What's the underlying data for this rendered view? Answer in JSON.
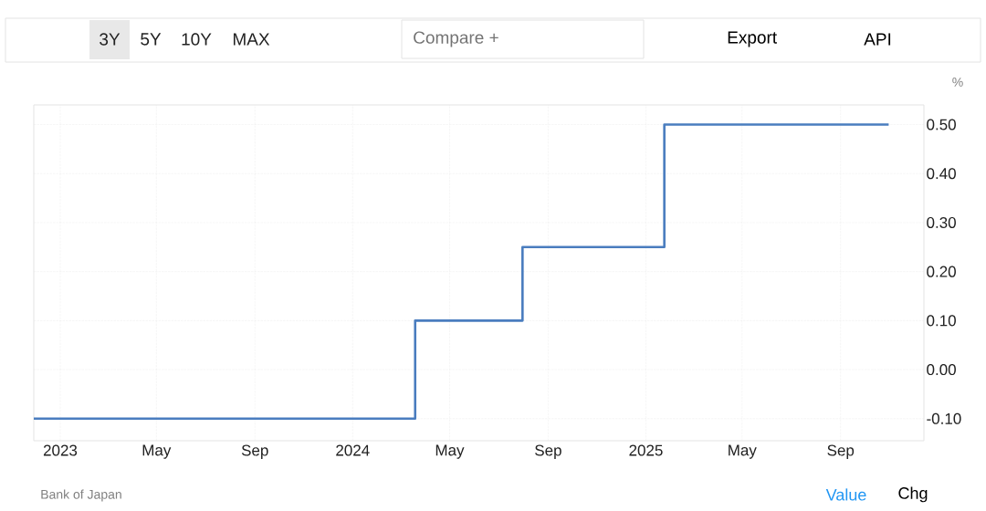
{
  "chart_data": {
    "type": "step",
    "x": [
      "2022-11-29",
      "2024-03-19",
      "2024-07-31",
      "2025-01-24",
      "2025-10-31"
    ],
    "values": [
      -0.1,
      0.1,
      0.25,
      0.5,
      0.5
    ],
    "color": "#4a7dbf",
    "ylabel": "%",
    "xlim": [
      "2022-11-29",
      "2025-12-14"
    ],
    "xticks": [
      {
        "value": "2023-01-01",
        "label": "2023"
      },
      {
        "value": "2023-05-01",
        "label": "May"
      },
      {
        "value": "2023-09-01",
        "label": "Sep"
      },
      {
        "value": "2024-01-01",
        "label": "2024"
      },
      {
        "value": "2024-05-01",
        "label": "May"
      },
      {
        "value": "2024-09-01",
        "label": "Sep"
      },
      {
        "value": "2025-01-01",
        "label": "2025"
      },
      {
        "value": "2025-05-01",
        "label": "May"
      },
      {
        "value": "2025-09-01",
        "label": "Sep"
      }
    ],
    "ylim": [
      -0.145,
      0.54
    ],
    "yticks": [
      {
        "value": -0.1,
        "label": "-0.10"
      },
      {
        "value": 0.0,
        "label": "0.00"
      },
      {
        "value": 0.1,
        "label": "0.10"
      },
      {
        "value": 0.2,
        "label": "0.20"
      },
      {
        "value": 0.3,
        "label": "0.30"
      },
      {
        "value": 0.4,
        "label": "0.40"
      },
      {
        "value": 0.5,
        "label": "0.50"
      }
    ],
    "grid": true,
    "annotations": [
      "Bank of Japan",
      "3Y",
      "5Y",
      "10Y",
      "MAX",
      "Compare +",
      "Export",
      "API",
      "Value",
      "Chg"
    ]
  }
}
